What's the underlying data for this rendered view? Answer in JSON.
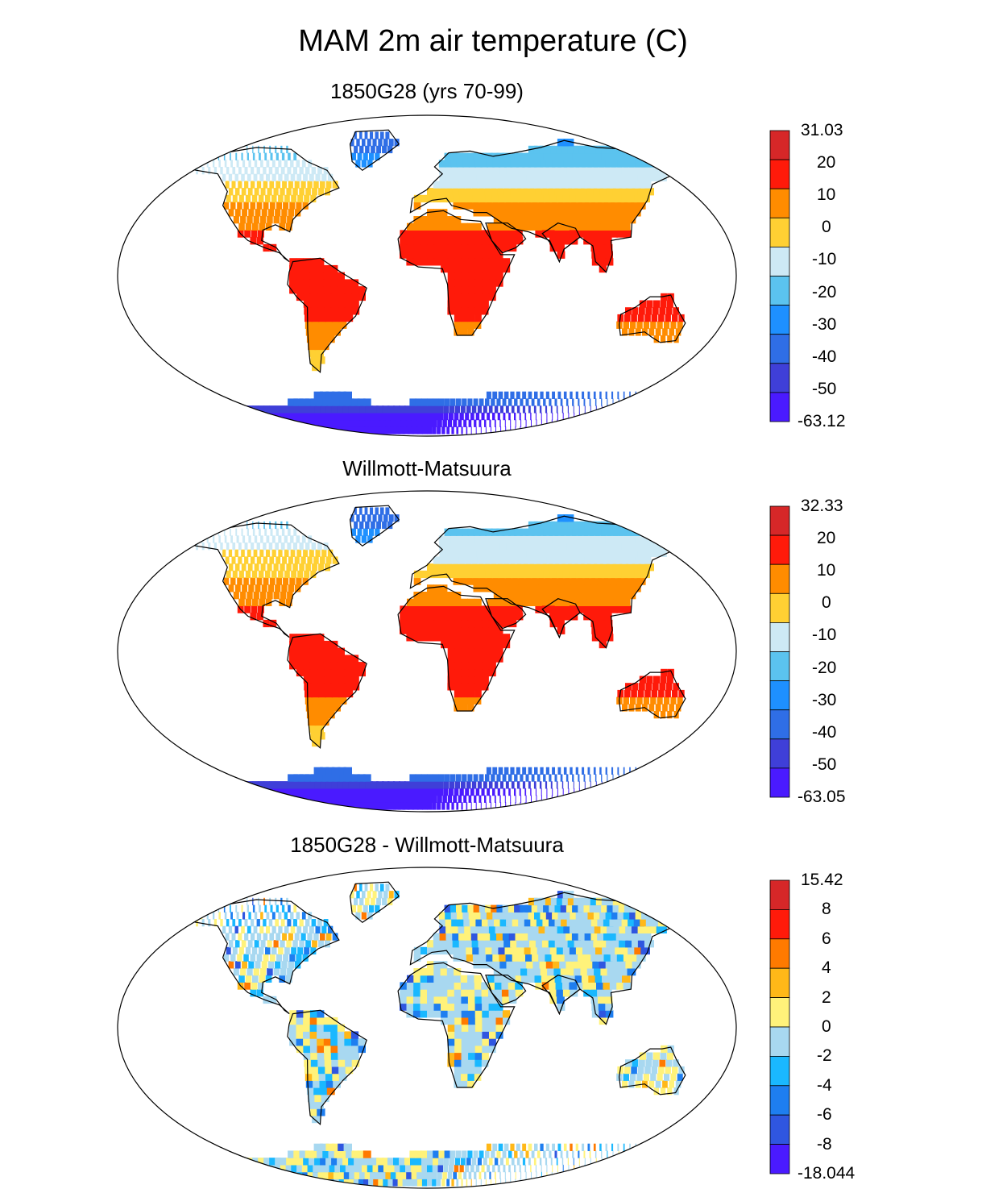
{
  "title": "MAM 2m air temperature (C)",
  "panels": [
    {
      "id": "model",
      "title": "1850G28 (yrs 70-99)",
      "colorbar": {
        "labels": [
          "31.03",
          "20",
          "10",
          "0",
          "-10",
          "-20",
          "-30",
          "-40",
          "-50",
          "-63.12"
        ],
        "colors": [
          "#d62728",
          "#ff1a0a",
          "#ff8c00",
          "#ffd033",
          "#cde9f5",
          "#5bc3ef",
          "#1e90ff",
          "#2f6ee6",
          "#3f3fd8",
          "#4a1aff"
        ]
      },
      "palette": "temperature"
    },
    {
      "id": "obs",
      "title": "Willmott-Matsuura",
      "colorbar": {
        "labels": [
          "32.33",
          "20",
          "10",
          "0",
          "-10",
          "-20",
          "-30",
          "-40",
          "-50",
          "-63.05"
        ],
        "colors": [
          "#d62728",
          "#ff1a0a",
          "#ff8c00",
          "#ffd033",
          "#cde9f5",
          "#5bc3ef",
          "#1e90ff",
          "#2f6ee6",
          "#3f3fd8",
          "#4a1aff"
        ]
      },
      "palette": "temperature"
    },
    {
      "id": "diff",
      "title": "1850G28 - Willmott-Matsuura",
      "colorbar": {
        "labels": [
          "15.42",
          "8",
          "6",
          "4",
          "2",
          "0",
          "-2",
          "-4",
          "-6",
          "-8",
          "-18.044"
        ],
        "colors": [
          "#d62728",
          "#ff1a0a",
          "#ff7a00",
          "#ffb818",
          "#fff27a",
          "#a8d8f0",
          "#1ab8ff",
          "#1e7ef0",
          "#2f56e0",
          "#4a1aff"
        ]
      },
      "palette": "difference"
    }
  ]
}
